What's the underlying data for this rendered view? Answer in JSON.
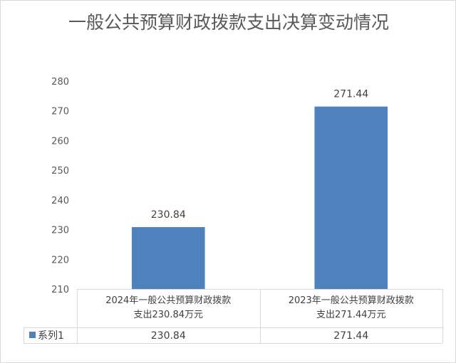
{
  "chart_data": {
    "type": "bar",
    "title": "一般公共预算财政拨款支出决算变动情况",
    "categories": [
      [
        "2024年一般公共预算财政拨款",
        "支出230.84万元"
      ],
      [
        "2023年一般公共预算财政拨款",
        "支出271.44万元"
      ]
    ],
    "series": [
      {
        "name": "系列1",
        "values": [
          230.84,
          271.44
        ],
        "labels": [
          "230.84",
          "271.44"
        ],
        "color": "#4f81bd"
      }
    ],
    "ylim": [
      210,
      280
    ],
    "yticks": [
      210,
      220,
      230,
      240,
      250,
      260,
      270,
      280
    ],
    "xlabel": "",
    "ylabel": "",
    "grid": false,
    "legend": "data-table",
    "data_table": true
  }
}
